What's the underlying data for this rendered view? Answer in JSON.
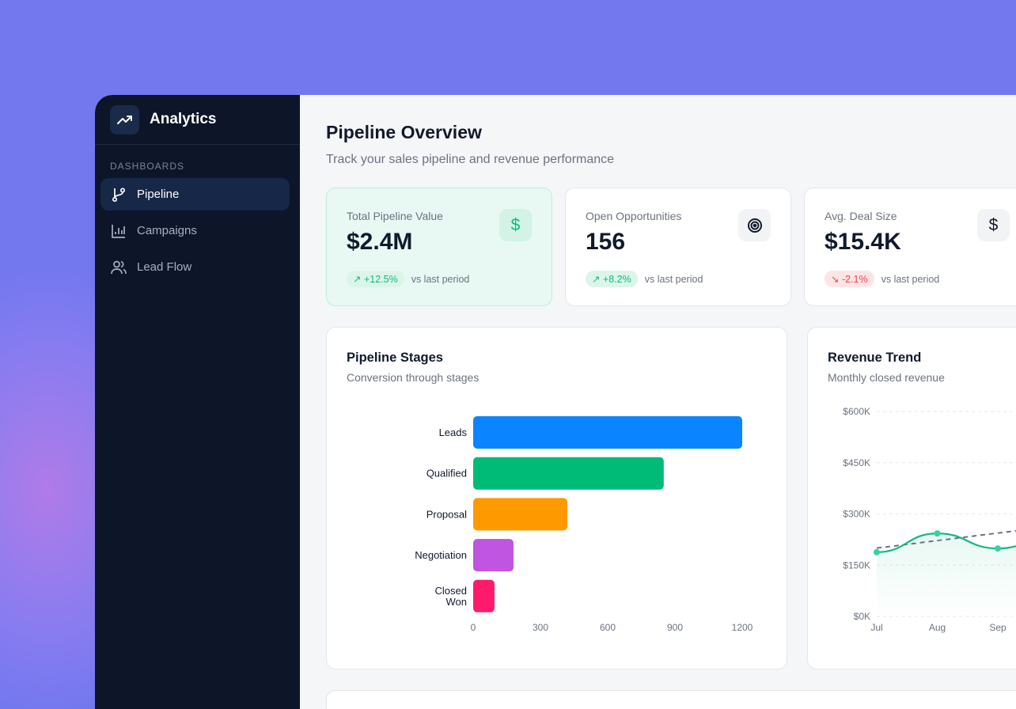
{
  "sidebar": {
    "title": "Analytics",
    "section": "DASHBOARDS",
    "items": [
      {
        "label": "Pipeline",
        "icon": "git-branch-icon",
        "active": true
      },
      {
        "label": "Campaigns",
        "icon": "bar-chart-icon"
      },
      {
        "label": "Lead Flow",
        "icon": "users-icon"
      }
    ]
  },
  "header": {
    "title": "Pipeline Overview",
    "subtitle": "Track your sales pipeline and revenue performance"
  },
  "kpis": [
    {
      "label": "Total Pipeline Value",
      "value": "$2.4M",
      "change": "+12.5%",
      "trend": "up",
      "note": "vs last period",
      "icon": "dollar-icon"
    },
    {
      "label": "Open Opportunities",
      "value": "156",
      "change": "+8.2%",
      "trend": "up",
      "note": "vs last period",
      "icon": "target-icon"
    },
    {
      "label": "Avg. Deal Size",
      "value": "$15.4K",
      "change": "-2.1%",
      "trend": "down",
      "note": "vs last period",
      "icon": "dollar-icon"
    }
  ],
  "colors": {
    "accent": "#10b981",
    "negative": "#ef4444",
    "sidebar": "#0c1628",
    "background": "#7378ef"
  },
  "stages": {
    "title": "Pipeline Stages",
    "subtitle": "Conversion through stages"
  },
  "revenue": {
    "title": "Revenue Trend",
    "subtitle": "Monthly closed revenue"
  },
  "chart_data": [
    {
      "type": "bar",
      "orientation": "horizontal",
      "categories": [
        "Leads",
        "Qualified",
        "Proposal",
        "Negotiation",
        "Closed Won"
      ],
      "values": [
        1200,
        850,
        420,
        180,
        95
      ],
      "colors": [
        "#0a84ff",
        "#00bb77",
        "#ff9900",
        "#bf55e0",
        "#ff1a6b"
      ],
      "xlim": [
        0,
        1200
      ],
      "xticks": [
        "0",
        "300",
        "600",
        "900",
        "1200"
      ],
      "grid": false
    },
    {
      "type": "line",
      "categories": [
        "Jul",
        "Aug",
        "Sep"
      ],
      "series": [
        {
          "values": [
            188000,
            243000,
            199000
          ],
          "color": "#10b981"
        }
      ],
      "trend": {
        "start": 200000,
        "slope_per_month": 22000,
        "style": "dashed"
      },
      "ylim": [
        0,
        600000
      ],
      "yticks": [
        "$0K",
        "$150K",
        "$300K",
        "$450K",
        "$600K"
      ],
      "grid": true,
      "area_fill": true
    }
  ]
}
